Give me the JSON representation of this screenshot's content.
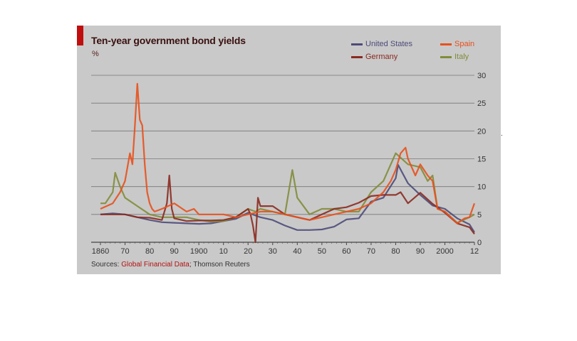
{
  "chart_data": {
    "type": "line",
    "title": "Ten-year government bond yields",
    "unit": "%",
    "ylim": [
      0,
      30
    ],
    "yticks": [
      0,
      5,
      10,
      15,
      20,
      25,
      30
    ],
    "xlim": [
      1860,
      2012
    ],
    "xticks": [
      {
        "year": 1860,
        "label": "1860"
      },
      {
        "year": 1870,
        "label": "70"
      },
      {
        "year": 1880,
        "label": "80"
      },
      {
        "year": 1890,
        "label": "90"
      },
      {
        "year": 1900,
        "label": "1900"
      },
      {
        "year": 1910,
        "label": "10"
      },
      {
        "year": 1920,
        "label": "20"
      },
      {
        "year": 1930,
        "label": "30"
      },
      {
        "year": 1940,
        "label": "40"
      },
      {
        "year": 1950,
        "label": "50"
      },
      {
        "year": 1960,
        "label": "60"
      },
      {
        "year": 1970,
        "label": "70"
      },
      {
        "year": 1980,
        "label": "80"
      },
      {
        "year": 1990,
        "label": "90"
      },
      {
        "year": 2000,
        "label": "2000"
      },
      {
        "year": 2012,
        "label": "12"
      }
    ],
    "grid": true,
    "legend_position": "top-right",
    "series": [
      {
        "name": "United States",
        "color": "#4d4b7a",
        "x": [
          1860,
          1865,
          1870,
          1875,
          1880,
          1885,
          1890,
          1895,
          1900,
          1905,
          1910,
          1915,
          1920,
          1925,
          1930,
          1935,
          1940,
          1945,
          1950,
          1955,
          1960,
          1965,
          1970,
          1975,
          1980,
          1981,
          1985,
          1990,
          1995,
          2000,
          2005,
          2010,
          2012
        ],
        "y": [
          5,
          5.2,
          5,
          4.5,
          4,
          3.6,
          3.5,
          3.4,
          3.3,
          3.4,
          3.8,
          4.2,
          5.3,
          4.5,
          4,
          3,
          2.2,
          2.2,
          2.3,
          2.8,
          4.1,
          4.3,
          7.3,
          8,
          11.5,
          13.9,
          10.6,
          8.5,
          6.6,
          6,
          4.3,
          3.2,
          1.8
        ]
      },
      {
        "name": "Spain",
        "color": "#e8501c",
        "x": [
          1860,
          1865,
          1868,
          1870,
          1872,
          1873,
          1874,
          1875,
          1876,
          1877,
          1878,
          1879,
          1880,
          1881,
          1882,
          1885,
          1890,
          1895,
          1898,
          1900,
          1905,
          1910,
          1915,
          1920,
          1925,
          1930,
          1935,
          1940,
          1945,
          1950,
          1955,
          1960,
          1965,
          1970,
          1975,
          1978,
          1980,
          1982,
          1984,
          1985,
          1988,
          1990,
          1993,
          1995,
          1997,
          2000,
          2005,
          2008,
          2010,
          2012
        ],
        "y": [
          6,
          7,
          9,
          11,
          16,
          14,
          21,
          28.5,
          22,
          21,
          14,
          9,
          7,
          6,
          5.5,
          6,
          7,
          5.5,
          6,
          5,
          5,
          5,
          4.5,
          5,
          5.5,
          5.5,
          5,
          4.5,
          4,
          4.5,
          5,
          5.5,
          6,
          7,
          9,
          11,
          13,
          16,
          17,
          15,
          12,
          14,
          12,
          11,
          6,
          5.5,
          3.4,
          4.3,
          4.5,
          7
        ]
      },
      {
        "name": "Germany",
        "color": "#8a2a20",
        "x": [
          1860,
          1865,
          1870,
          1875,
          1880,
          1885,
          1887,
          1888,
          1889,
          1890,
          1895,
          1900,
          1905,
          1910,
          1915,
          1920,
          1921,
          1922,
          1923,
          1924,
          1925,
          1930,
          1935,
          1940,
          1945,
          1950,
          1955,
          1960,
          1965,
          1970,
          1975,
          1980,
          1982,
          1985,
          1990,
          1995,
          2000,
          2005,
          2010,
          2012
        ],
        "y": [
          5,
          5,
          5,
          4.5,
          4.4,
          4,
          7,
          12,
          6,
          4.3,
          3.8,
          3.9,
          3.9,
          4,
          4.5,
          6,
          5,
          3,
          0,
          8,
          6.5,
          6.5,
          5,
          4.5,
          4,
          5,
          6,
          6.3,
          7.1,
          8.3,
          8.5,
          8.5,
          9,
          7,
          8.9,
          6.9,
          5.3,
          3.4,
          2.7,
          1.5
        ]
      },
      {
        "name": "Italy",
        "color": "#828c3a",
        "x": [
          1860,
          1862,
          1865,
          1866,
          1868,
          1870,
          1875,
          1880,
          1885,
          1890,
          1895,
          1900,
          1905,
          1910,
          1915,
          1920,
          1923,
          1925,
          1930,
          1935,
          1938,
          1940,
          1945,
          1950,
          1955,
          1960,
          1965,
          1970,
          1975,
          1980,
          1985,
          1990,
          1993,
          1995,
          1997,
          2000,
          2005,
          2010,
          2012
        ],
        "y": [
          7,
          7,
          9,
          12.5,
          10,
          8,
          6.5,
          5,
          4.5,
          4.5,
          4.5,
          4,
          3.7,
          3.8,
          4.5,
          6,
          5.5,
          6,
          5.5,
          5,
          13,
          8,
          5,
          6,
          6,
          5.5,
          5.5,
          9,
          11,
          16,
          14,
          13.5,
          11,
          12,
          6,
          5.5,
          3.5,
          4.5,
          5
        ]
      }
    ]
  },
  "sources": {
    "prefix": "Sources:",
    "highlight": "Global Financial Data",
    "suffix": "; Thomson Reuters"
  },
  "edge_mark": ".",
  "colors": {
    "background": "#c9c9c9",
    "grid": "#777777",
    "accent": "#c00d0d"
  }
}
